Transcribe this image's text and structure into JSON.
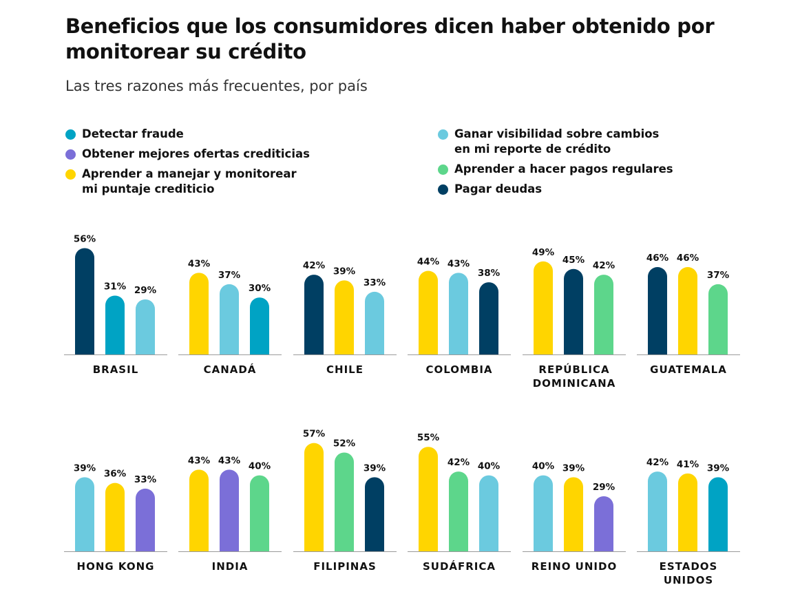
{
  "title": "Beneficios que los consumidores dicen haber obtenido por monitorear su crédito",
  "subtitle": "Las tres razones más frecuentes, por país",
  "legend": [
    {
      "label": "Detectar fraude",
      "color": "#00A3C4"
    },
    {
      "label": "Obtener mejores ofertas crediticias",
      "color": "#7B6FD8"
    },
    {
      "label": "Aprender a manejar y monitorear mi puntaje crediticio",
      "color": "#FFD500"
    },
    {
      "label": "Ganar visibilidad sobre cambios en mi reporte de crédito",
      "color": "#6BCADF"
    },
    {
      "label": "Aprender a hacer pagos regulares",
      "color": "#5DD68B"
    },
    {
      "label": "Pagar deudas",
      "color": "#003F63"
    }
  ],
  "chart_data": {
    "type": "bar",
    "title": "Beneficios que los consumidores dicen haber obtenido por monitorear su crédito",
    "subtitle": "Las tres razones más frecuentes, por país",
    "unit": "%",
    "series_names": [
      "Detectar fraude",
      "Obtener mejores ofertas crediticias",
      "Aprender a manejar y monitorear mi puntaje crediticio",
      "Ganar visibilidad sobre cambios en mi reporte de crédito",
      "Aprender a hacer pagos regulares",
      "Pagar deudas"
    ],
    "countries": [
      {
        "name": [
          "BRASIL"
        ],
        "bars": [
          {
            "series": "Pagar deudas",
            "value": 56
          },
          {
            "series": "Detectar fraude",
            "value": 31
          },
          {
            "series": "Ganar visibilidad sobre cambios en mi reporte de crédito",
            "value": 29
          }
        ]
      },
      {
        "name": [
          "CANADÁ"
        ],
        "bars": [
          {
            "series": "Aprender a manejar y monitorear mi puntaje crediticio",
            "value": 43
          },
          {
            "series": "Ganar visibilidad sobre cambios en mi reporte de crédito",
            "value": 37
          },
          {
            "series": "Detectar fraude",
            "value": 30
          }
        ]
      },
      {
        "name": [
          "CHILE"
        ],
        "bars": [
          {
            "series": "Pagar deudas",
            "value": 42
          },
          {
            "series": "Aprender a manejar y monitorear mi puntaje crediticio",
            "value": 39
          },
          {
            "series": "Ganar visibilidad sobre cambios en mi reporte de crédito",
            "value": 33
          }
        ]
      },
      {
        "name": [
          "COLOMBIA"
        ],
        "bars": [
          {
            "series": "Aprender a manejar y monitorear mi puntaje crediticio",
            "value": 44
          },
          {
            "series": "Ganar visibilidad sobre cambios en mi reporte de crédito",
            "value": 43
          },
          {
            "series": "Pagar deudas",
            "value": 38
          }
        ]
      },
      {
        "name": [
          "REPÚBLICA",
          "DOMINICANA"
        ],
        "bars": [
          {
            "series": "Aprender a manejar y monitorear mi puntaje crediticio",
            "value": 49
          },
          {
            "series": "Pagar deudas",
            "value": 45
          },
          {
            "series": "Aprender a hacer pagos regulares",
            "value": 42
          }
        ]
      },
      {
        "name": [
          "GUATEMALA"
        ],
        "bars": [
          {
            "series": "Pagar deudas",
            "value": 46
          },
          {
            "series": "Aprender a manejar y monitorear mi puntaje crediticio",
            "value": 46
          },
          {
            "series": "Aprender a hacer pagos regulares",
            "value": 37
          }
        ]
      },
      {
        "name": [
          "HONG KONG"
        ],
        "bars": [
          {
            "series": "Ganar visibilidad sobre cambios en mi reporte de crédito",
            "value": 39
          },
          {
            "series": "Aprender a manejar y monitorear mi puntaje crediticio",
            "value": 36
          },
          {
            "series": "Obtener mejores ofertas crediticias",
            "value": 33
          }
        ]
      },
      {
        "name": [
          "INDIA"
        ],
        "bars": [
          {
            "series": "Aprender a manejar y monitorear mi puntaje crediticio",
            "value": 43
          },
          {
            "series": "Obtener mejores ofertas crediticias",
            "value": 43
          },
          {
            "series": "Aprender a hacer pagos regulares",
            "value": 40
          }
        ]
      },
      {
        "name": [
          "FILIPINAS"
        ],
        "bars": [
          {
            "series": "Aprender a manejar y monitorear mi puntaje crediticio",
            "value": 57
          },
          {
            "series": "Aprender a hacer pagos regulares",
            "value": 52
          },
          {
            "series": "Pagar deudas",
            "value": 39
          }
        ]
      },
      {
        "name": [
          "SUDÁFRICA"
        ],
        "bars": [
          {
            "series": "Aprender a manejar y monitorear mi puntaje crediticio",
            "value": 55
          },
          {
            "series": "Aprender a hacer pagos regulares",
            "value": 42
          },
          {
            "series": "Ganar visibilidad sobre cambios en mi reporte de crédito",
            "value": 40
          }
        ]
      },
      {
        "name": [
          "REINO UNIDO"
        ],
        "bars": [
          {
            "series": "Ganar visibilidad sobre cambios en mi reporte de crédito",
            "value": 40
          },
          {
            "series": "Aprender a manejar y monitorear mi puntaje crediticio",
            "value": 39
          },
          {
            "series": "Obtener mejores ofertas crediticias",
            "value": 29
          }
        ]
      },
      {
        "name": [
          "ESTADOS",
          "UNIDOS"
        ],
        "bars": [
          {
            "series": "Ganar visibilidad sobre cambios en mi reporte de crédito",
            "value": 42
          },
          {
            "series": "Aprender a manejar y monitorear mi puntaje crediticio",
            "value": 41
          },
          {
            "series": "Detectar fraude",
            "value": 39
          }
        ]
      }
    ]
  }
}
